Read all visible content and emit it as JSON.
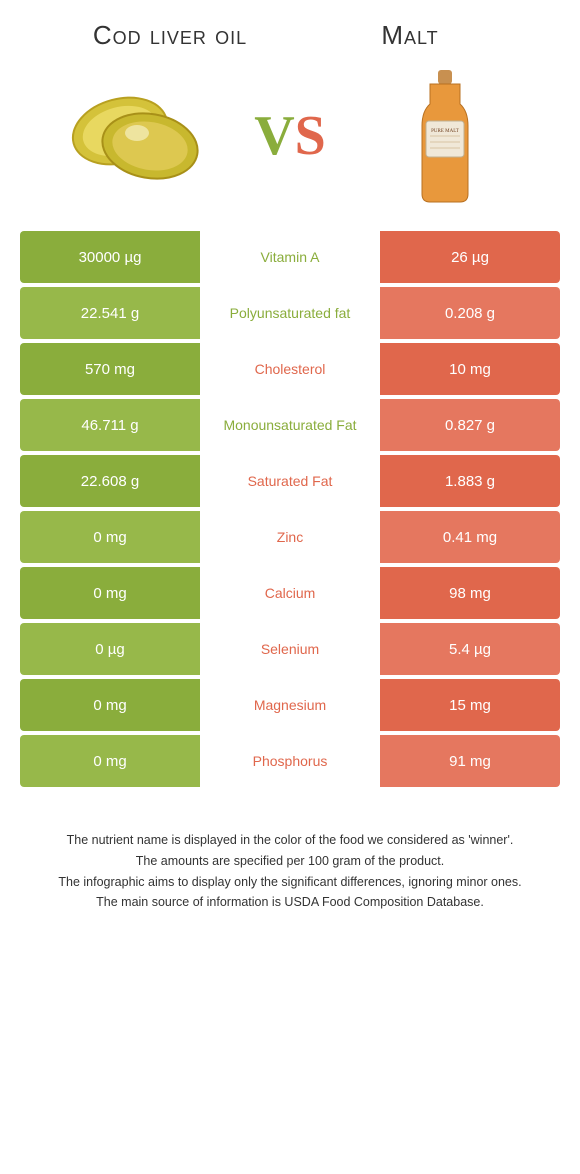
{
  "left_title": "Cod liver oil",
  "right_title": "Malt",
  "vs": {
    "v": "V",
    "s": "S"
  },
  "colors": {
    "left": "#8aad3c",
    "right": "#e0674c",
    "row_alt_left": "#97b84a",
    "row_alt_right": "#e5775f"
  },
  "title_fontsize": 26,
  "vs_fontsize": 56,
  "rows": [
    {
      "left": "30000 µg",
      "mid": "Vitamin A",
      "right": "26 µg",
      "winner": "left"
    },
    {
      "left": "22.541 g",
      "mid": "Polyunsaturated fat",
      "right": "0.208 g",
      "winner": "left"
    },
    {
      "left": "570 mg",
      "mid": "Cholesterol",
      "right": "10 mg",
      "winner": "right"
    },
    {
      "left": "46.711 g",
      "mid": "Monounsaturated Fat",
      "right": "0.827 g",
      "winner": "left"
    },
    {
      "left": "22.608 g",
      "mid": "Saturated Fat",
      "right": "1.883 g",
      "winner": "right"
    },
    {
      "left": "0 mg",
      "mid": "Zinc",
      "right": "0.41 mg",
      "winner": "right"
    },
    {
      "left": "0 mg",
      "mid": "Calcium",
      "right": "98 mg",
      "winner": "right"
    },
    {
      "left": "0 µg",
      "mid": "Selenium",
      "right": "5.4 µg",
      "winner": "right"
    },
    {
      "left": "0 mg",
      "mid": "Magnesium",
      "right": "15 mg",
      "winner": "right"
    },
    {
      "left": "0 mg",
      "mid": "Phosphorus",
      "right": "91 mg",
      "winner": "right"
    }
  ],
  "footer": [
    "The nutrient name is displayed in the color of the food we considered as 'winner'.",
    "The amounts are specified per 100 gram of the product.",
    "The infographic aims to display only the significant differences, ignoring minor ones.",
    "The main source of information is USDA Food Composition Database."
  ]
}
